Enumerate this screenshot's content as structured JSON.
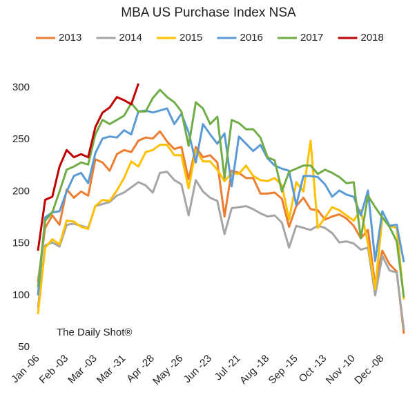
{
  "chart_data": {
    "type": "line",
    "title": "MBA US Purchase Index NSA",
    "annotation": "The Daily Shot®",
    "categories": [
      "Jan -06",
      null,
      null,
      null,
      "Feb -03",
      null,
      null,
      null,
      "Mar -03",
      null,
      null,
      null,
      "Mar -31",
      null,
      null,
      null,
      "Apr -28",
      null,
      null,
      null,
      "May -26",
      null,
      null,
      null,
      "Jun -23",
      null,
      null,
      null,
      "Jul -21",
      null,
      null,
      null,
      "Aug -18",
      null,
      null,
      null,
      "Sep -15",
      null,
      null,
      null,
      "Oct -13",
      null,
      null,
      null,
      "Nov -10",
      null,
      null,
      null,
      "Dec -08",
      null,
      null,
      null
    ],
    "ylim": [
      50,
      310
    ],
    "yticks": [
      50,
      100,
      150,
      200,
      250,
      300
    ],
    "grid": false,
    "legend": "top",
    "series": [
      {
        "name": "2013",
        "color": "#ed7d31",
        "values": [
          113,
          165,
          177,
          168,
          202,
          194,
          200,
          196,
          231,
          228,
          220,
          236,
          240,
          238,
          249,
          252,
          251,
          258,
          248,
          241,
          243,
          212,
          243,
          233,
          235,
          228,
          176,
          220,
          218,
          213,
          213,
          198,
          198,
          199,
          193,
          166,
          186,
          194,
          183,
          182,
          173,
          176,
          178,
          174,
          167,
          155,
          163,
          110,
          143,
          130,
          123,
          63
        ]
      },
      {
        "name": "2014",
        "color": "#a5a5a5",
        "values": [
          88,
          148,
          151,
          147,
          168,
          169,
          167,
          165,
          186,
          188,
          190,
          196,
          199,
          204,
          209,
          206,
          199,
          218,
          219,
          211,
          207,
          177,
          211,
          200,
          194,
          191,
          159,
          184,
          185,
          186,
          183,
          179,
          176,
          177,
          170,
          146,
          167,
          165,
          163,
          167,
          165,
          160,
          151,
          152,
          150,
          144,
          146,
          100,
          138,
          124,
          122,
          67
        ]
      },
      {
        "name": "2015",
        "color": "#ffc000",
        "values": [
          82,
          146,
          154,
          149,
          172,
          171,
          166,
          164,
          186,
          192,
          191,
          201,
          213,
          229,
          224,
          238,
          240,
          245,
          245,
          235,
          235,
          203,
          240,
          229,
          229,
          221,
          210,
          218,
          217,
          225,
          215,
          211,
          210,
          213,
          206,
          173,
          209,
          200,
          249,
          165,
          175,
          185,
          182,
          177,
          172,
          182,
          150,
          106,
          175,
          167,
          165,
          96
        ]
      },
      {
        "name": "2016",
        "color": "#5b9bd5",
        "values": [
          100,
          175,
          180,
          181,
          200,
          215,
          218,
          208,
          237,
          251,
          253,
          252,
          259,
          255,
          277,
          278,
          276,
          278,
          280,
          265,
          275,
          257,
          228,
          265,
          255,
          246,
          256,
          205,
          253,
          246,
          239,
          245,
          232,
          225,
          222,
          220,
          187,
          215,
          215,
          214,
          207,
          195,
          201,
          197,
          195,
          177,
          201,
          133,
          181,
          167,
          168,
          132
        ]
      },
      {
        "name": "2017",
        "color": "#70ad47",
        "values": [
          108,
          172,
          180,
          200,
          221,
          224,
          228,
          226,
          255,
          269,
          265,
          269,
          273,
          285,
          277,
          277,
          290,
          298,
          291,
          286,
          277,
          244,
          286,
          280,
          265,
          272,
          213,
          269,
          266,
          260,
          260,
          252,
          233,
          230,
          200,
          219,
          222,
          225,
          225,
          217,
          221,
          218,
          214,
          208,
          209,
          155,
          196,
          185,
          175,
          166,
          152,
          98
        ]
      },
      {
        "name": "2018",
        "color": "#c00000",
        "values": [
          143,
          192,
          195,
          224,
          240,
          233,
          236,
          233,
          262,
          276,
          281,
          291,
          288,
          284,
          304,
          null,
          null,
          null,
          null,
          null,
          null,
          null,
          null,
          null,
          null,
          null,
          null,
          null,
          null,
          null,
          null,
          null,
          null,
          null,
          null,
          null,
          null,
          null,
          null,
          null,
          null,
          null,
          null,
          null,
          null,
          null,
          null,
          null,
          null,
          null,
          null,
          null
        ]
      }
    ]
  }
}
